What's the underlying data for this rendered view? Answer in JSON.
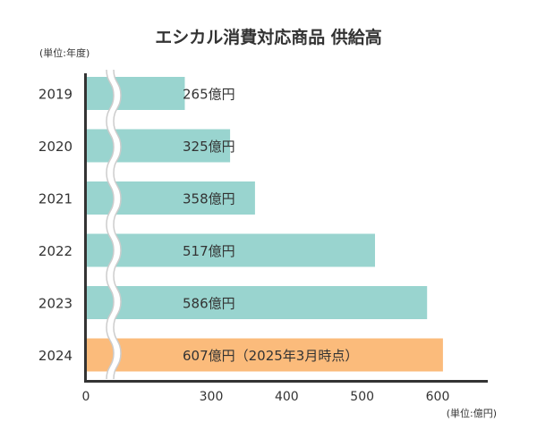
{
  "chart_data": {
    "type": "bar",
    "orientation": "horizontal",
    "title": "エシカル消費対応商品 供給高",
    "ylabel": "(単位:年度)",
    "xlabel": "(単位:億円)",
    "categories": [
      "2019",
      "2020",
      "2021",
      "2022",
      "2023",
      "2024"
    ],
    "values": [
      265,
      325,
      358,
      517,
      586,
      607
    ],
    "data_labels": [
      "265億円",
      "325億円",
      "358億円",
      "517億円",
      "586億円",
      "607億円（2025年3月時点）"
    ],
    "x_ticks": [
      "0",
      "300",
      "400",
      "500",
      "600"
    ],
    "axis_break": "between 0 and ~200",
    "xlim": [
      0,
      660
    ],
    "highlight_category": "2024",
    "colors": {
      "bar": "#99d4cf",
      "highlight": "#fbbb7b",
      "axis": "#333333",
      "break_line": "#cccccc"
    },
    "grid": false,
    "legend": "none"
  }
}
